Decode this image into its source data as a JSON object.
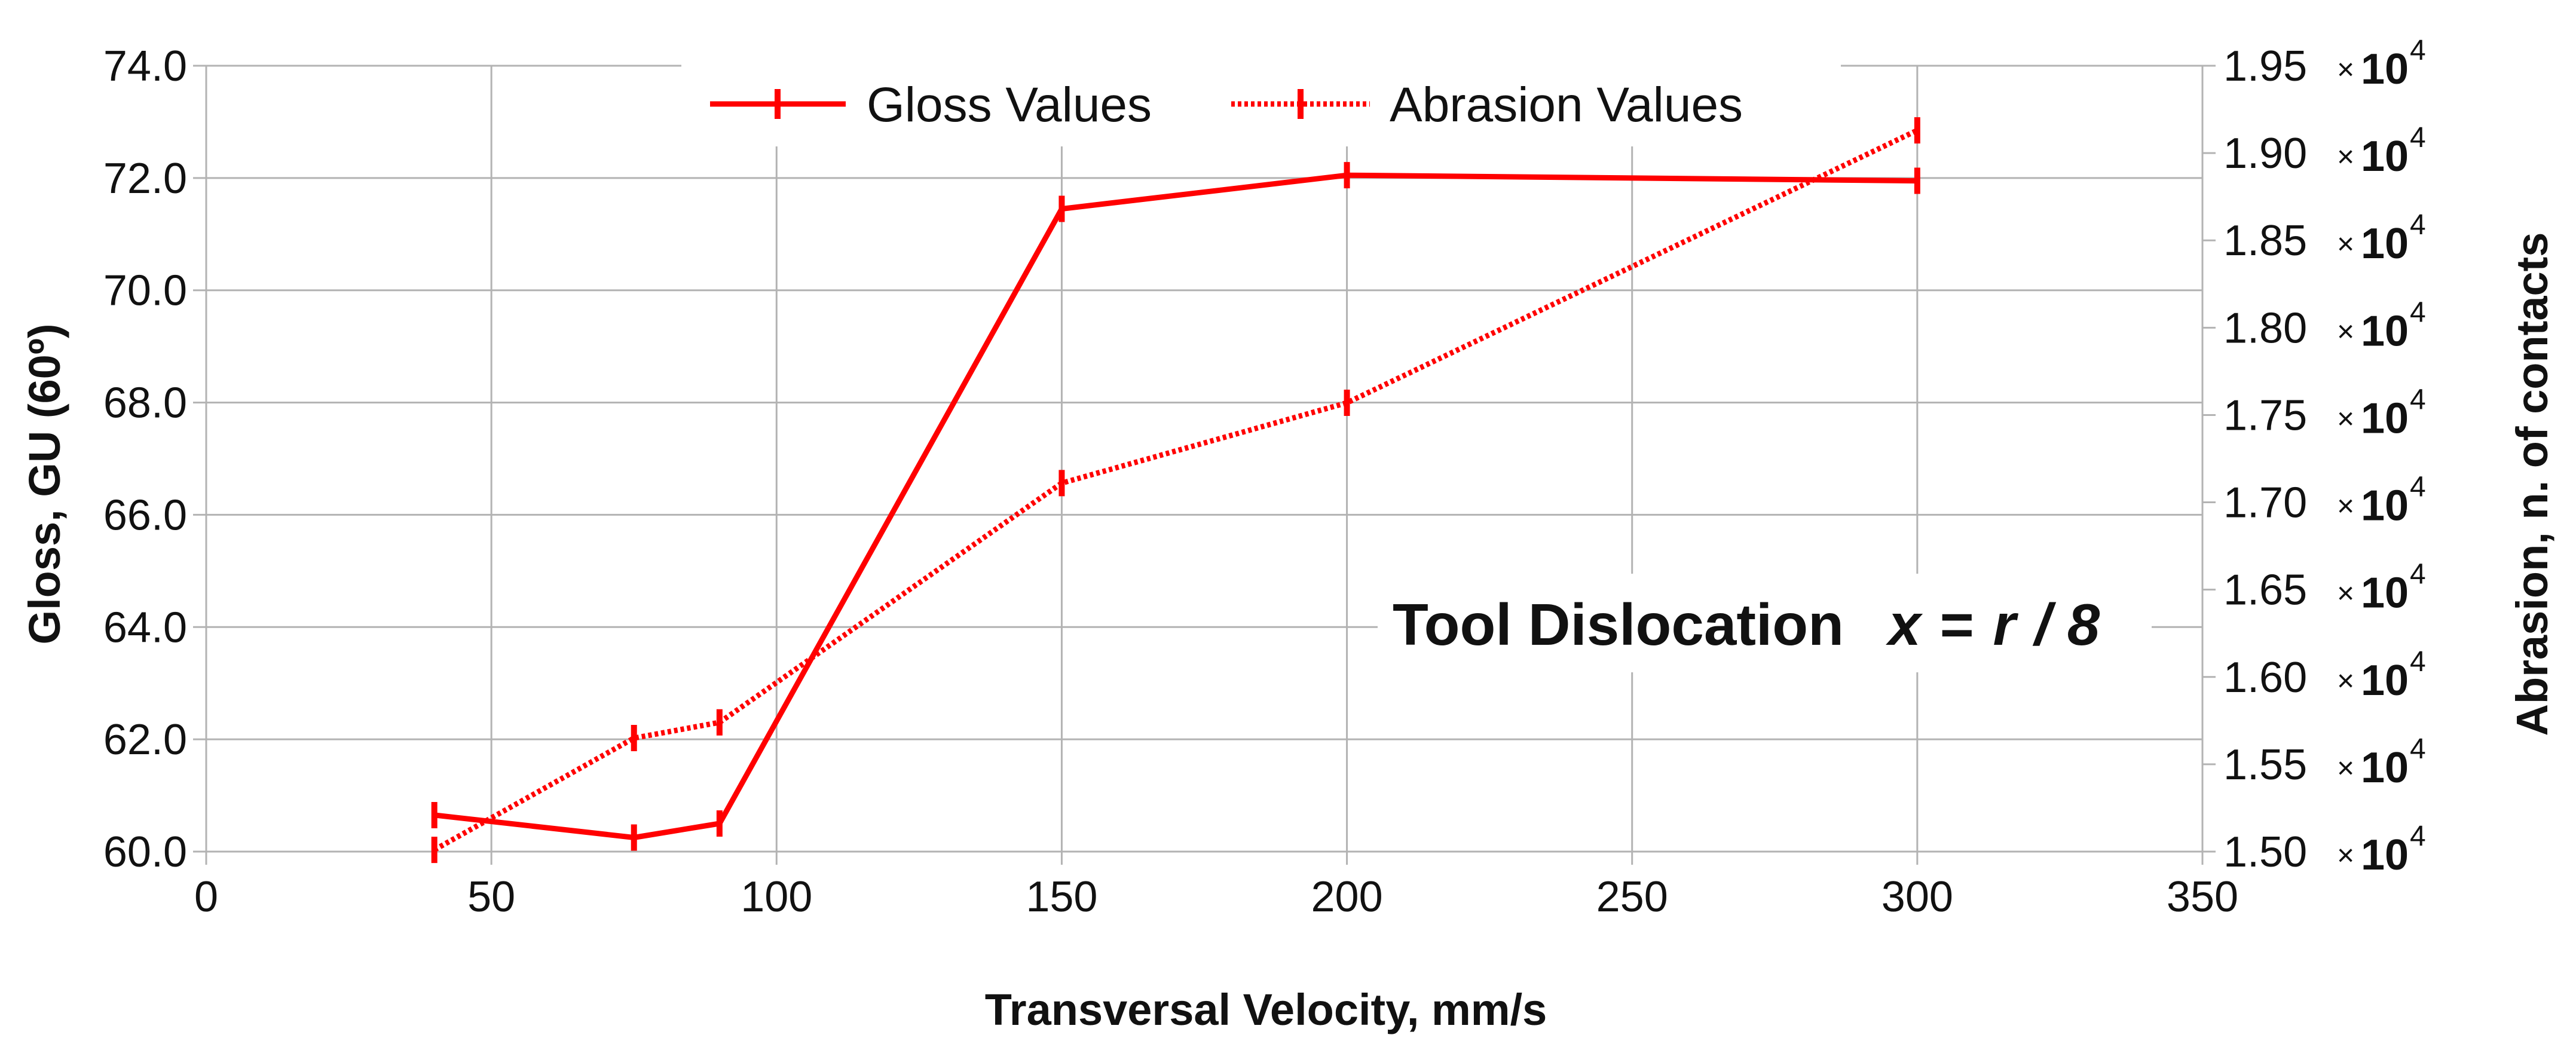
{
  "chart_data": {
    "type": "line",
    "title": "",
    "xlabel": "Transversal Velocity, mm/s",
    "ylabel": "Gloss, GU (60º)",
    "y2label": "Abrasion, n. of contacts",
    "xlim": [
      0,
      350
    ],
    "ylim": [
      60.0,
      74.0
    ],
    "y2lim": [
      15000,
      19500
    ],
    "x_ticks": [
      "0",
      "50",
      "100",
      "150",
      "200",
      "250",
      "300",
      "350"
    ],
    "y_ticks": [
      "74.0",
      "72.0",
      "70.0",
      "68.0",
      "66.0",
      "64.0",
      "62.0",
      "60.0"
    ],
    "y2_ticks": [
      "1.95",
      "1.90",
      "1.85",
      "1.80",
      "1.75",
      "1.70",
      "1.65",
      "1.60",
      "1.55",
      "1.50"
    ],
    "y2_multiplier": {
      "times": "×",
      "base": "10",
      "exponent": "4"
    },
    "grid": true,
    "legend_position": "top-center",
    "series": [
      {
        "name": "Gloss Values",
        "axis": "left",
        "style": "solid",
        "color": "#ff0000",
        "x": [
          40,
          75,
          90,
          150,
          200,
          300
        ],
        "values": [
          60.65,
          60.25,
          60.5,
          71.45,
          72.05,
          71.95
        ]
      },
      {
        "name": "Abrasion Values",
        "axis": "right",
        "style": "dotted",
        "color": "#ff0000",
        "x": [
          40,
          75,
          90,
          150,
          200,
          300
        ],
        "values": [
          15010,
          15650,
          15740,
          17110,
          17570,
          19130
        ]
      }
    ],
    "annotation": {
      "label": "Tool Dislocation",
      "math_var": "x",
      "math_eq": " = ",
      "math_r": "r",
      "math_rest": " / 8"
    }
  }
}
